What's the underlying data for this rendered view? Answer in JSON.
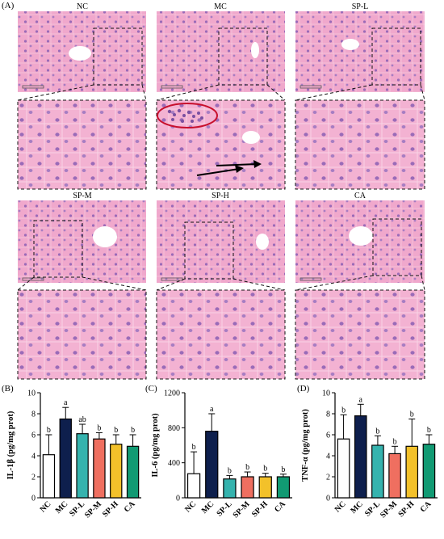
{
  "figure": {
    "panels": {
      "histology_label": "(A)",
      "il1b_label": "(B)",
      "il6_label": "(C)",
      "tnfa_label": "(D)"
    },
    "histology": {
      "groups": [
        "NC",
        "MC",
        "SP-L",
        "SP-M",
        "SP-H",
        "CA"
      ]
    },
    "colors": {
      "tissue": "#f0a8cc",
      "tissue_zoom": "#f3b2d2",
      "nuclei": "#9a6bb8",
      "inflammation_circle": "#c8102e",
      "bars": [
        "#ffffff",
        "#0e1f4d",
        "#35b3ae",
        "#ef6f60",
        "#f3c12a",
        "#119a73"
      ]
    }
  },
  "chart_data": [
    {
      "type": "bar",
      "title": "",
      "xlabel": "",
      "ylabel": "IL-1β (pg/mg prot)",
      "categories": [
        "NC",
        "MC",
        "SP-L",
        "SP-M",
        "SP-H",
        "CA"
      ],
      "values": [
        4.1,
        7.5,
        6.1,
        5.6,
        5.1,
        4.9
      ],
      "errors": [
        1.9,
        1.1,
        0.9,
        0.6,
        0.9,
        1.1
      ],
      "significance": [
        "b",
        "a",
        "ab",
        "b",
        "b",
        "b"
      ],
      "ylim": [
        0,
        10
      ],
      "yticks": [
        0,
        2,
        4,
        6,
        8,
        10
      ]
    },
    {
      "type": "bar",
      "title": "",
      "xlabel": "",
      "ylabel": "IL-6 (pg/mg prot)",
      "categories": [
        "NC",
        "MC",
        "SP-L",
        "SP-M",
        "SP-H",
        "CA"
      ],
      "values": [
        275,
        760,
        215,
        240,
        240,
        240
      ],
      "errors": [
        250,
        200,
        40,
        55,
        40,
        30
      ],
      "significance": [
        "b",
        "a",
        "b",
        "b",
        "b",
        "b"
      ],
      "ylim": [
        0,
        1200
      ],
      "yticks": [
        0,
        400,
        800,
        1200
      ]
    },
    {
      "type": "bar",
      "title": "",
      "xlabel": "",
      "ylabel": "TNF-α (pg/mg prot)",
      "categories": [
        "NC",
        "MC",
        "SP-L",
        "SP-M",
        "SP-H",
        "CA"
      ],
      "values": [
        5.6,
        7.8,
        5.0,
        4.2,
        4.9,
        5.1
      ],
      "errors": [
        2.3,
        1.1,
        0.9,
        0.7,
        2.6,
        0.9
      ],
      "significance": [
        "b",
        "a",
        "b",
        "b",
        "b",
        "b"
      ],
      "ylim": [
        0,
        10
      ],
      "yticks": [
        0,
        2,
        4,
        6,
        8,
        10
      ]
    }
  ]
}
